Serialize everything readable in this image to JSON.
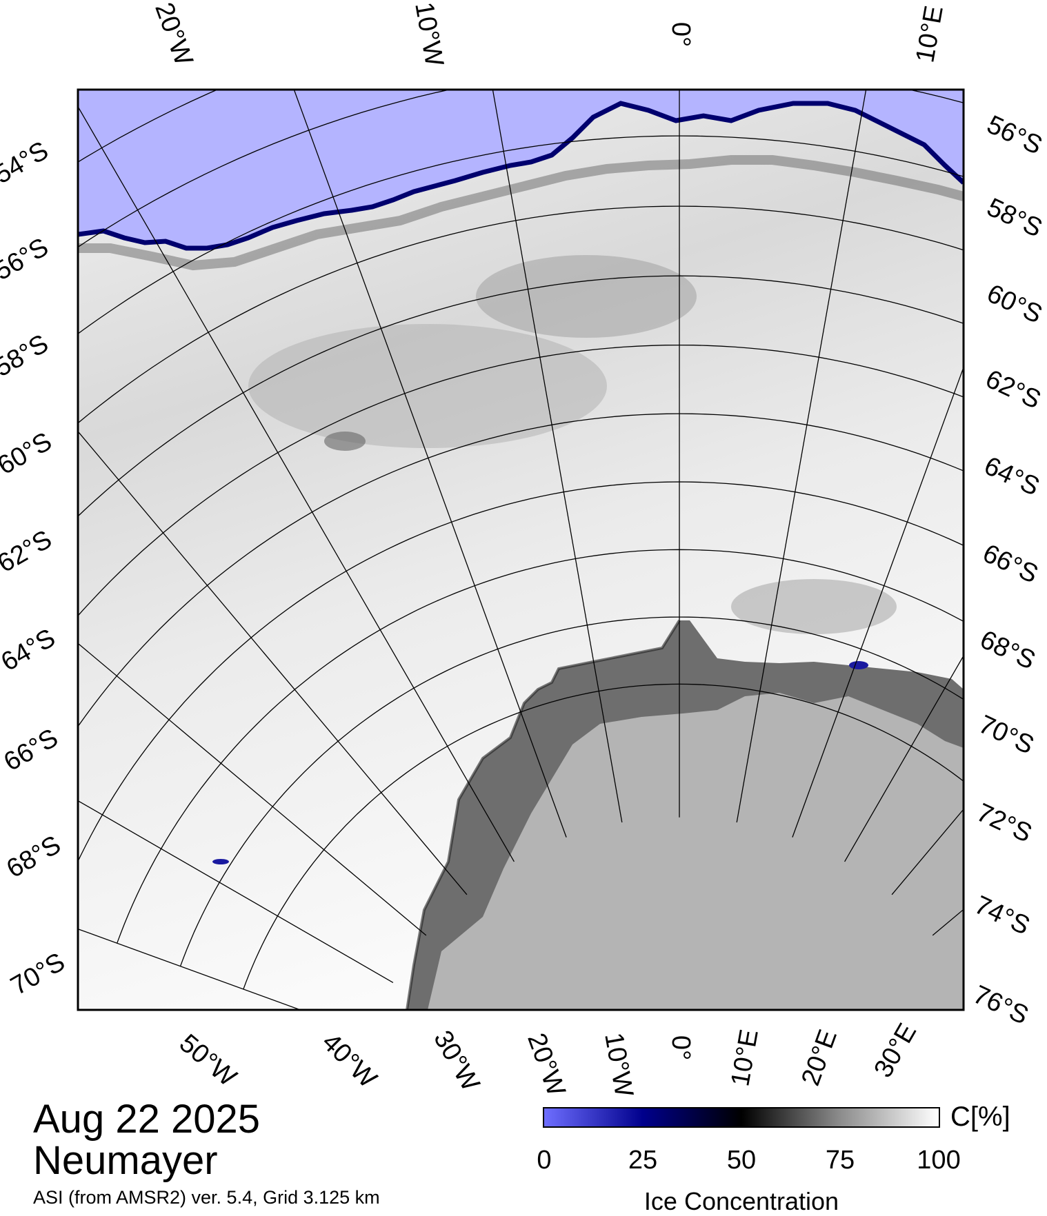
{
  "map": {
    "date": "Aug 22 2025",
    "station": "Neumayer",
    "product": "ASI (from AMSR2) ver. 5.4,  Grid 3.125 km",
    "colors": {
      "open_water": "#b4b4ff",
      "ice_shelf": "#6e6e6e",
      "land": "#b4b4b4",
      "full_ice": "#ffffff",
      "low_ice": "#00006e"
    },
    "top_lon_labels": [
      "20°W",
      "10°W",
      "0°",
      "10°E"
    ],
    "bottom_lon_labels": [
      "50°W",
      "40°W",
      "30°W",
      "20°W",
      "10°W",
      "0°",
      "10°E",
      "20°E",
      "30°E"
    ],
    "left_lat_labels": [
      "54°S",
      "56°S",
      "58°S",
      "60°S",
      "62°S",
      "64°S",
      "66°S",
      "68°S",
      "70°S"
    ],
    "right_lat_labels": [
      "56°S",
      "58°S",
      "60°S",
      "62°S",
      "64°S",
      "66°S",
      "68°S",
      "70°S",
      "72°S",
      "74°S",
      "76°S"
    ]
  },
  "colorbar": {
    "ticks": [
      "0",
      "25",
      "50",
      "75",
      "100"
    ],
    "unit": "C[%]",
    "title": "Ice Concentration",
    "gradient": [
      "#6e6eff",
      "#00008c",
      "#000000",
      "#8c8c8c",
      "#ffffff"
    ]
  }
}
